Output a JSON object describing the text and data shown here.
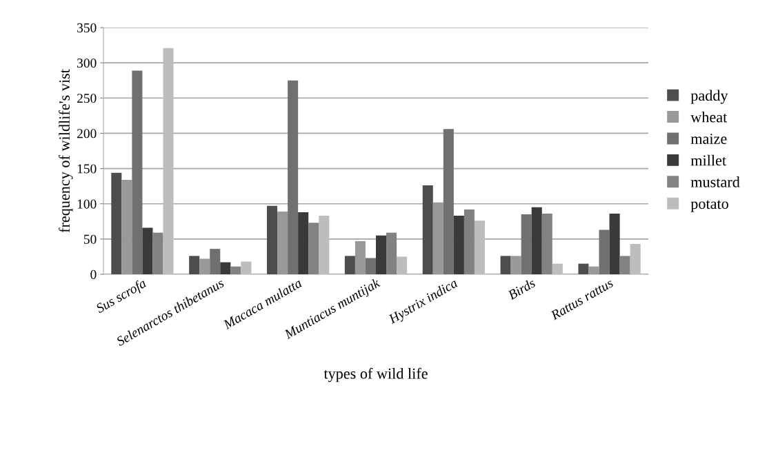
{
  "chart_data": {
    "type": "bar",
    "xlabel": "types of wild life",
    "ylabel": "frequency of wildlife's vist",
    "categories": [
      "Sus scrofa",
      "Selenarctos thibetanus",
      "Macaca mulatta",
      "Muntiacus muntijak",
      "Hystrix indica",
      "Birds",
      "Rattus rattus"
    ],
    "series": [
      {
        "name": "paddy",
        "color": "#4d4d4d",
        "values": [
          144,
          26,
          97,
          26,
          126,
          26,
          15
        ]
      },
      {
        "name": "wheat",
        "color": "#999999",
        "values": [
          134,
          22,
          89,
          47,
          102,
          26,
          11
        ]
      },
      {
        "name": "maize",
        "color": "#707070",
        "values": [
          289,
          36,
          275,
          23,
          206,
          85,
          63
        ]
      },
      {
        "name": "millet",
        "color": "#3a3a3a",
        "values": [
          66,
          17,
          88,
          55,
          83,
          95,
          86
        ]
      },
      {
        "name": "mustard",
        "color": "#828282",
        "values": [
          59,
          11,
          73,
          59,
          92,
          86,
          26
        ]
      },
      {
        "name": "potato",
        "color": "#bdbdbd",
        "values": [
          321,
          18,
          83,
          25,
          76,
          15,
          43
        ]
      }
    ],
    "ylim": [
      0,
      350
    ],
    "yticks": [
      0,
      50,
      100,
      150,
      200,
      250,
      300,
      350
    ],
    "grid": "y",
    "legend": "right"
  }
}
